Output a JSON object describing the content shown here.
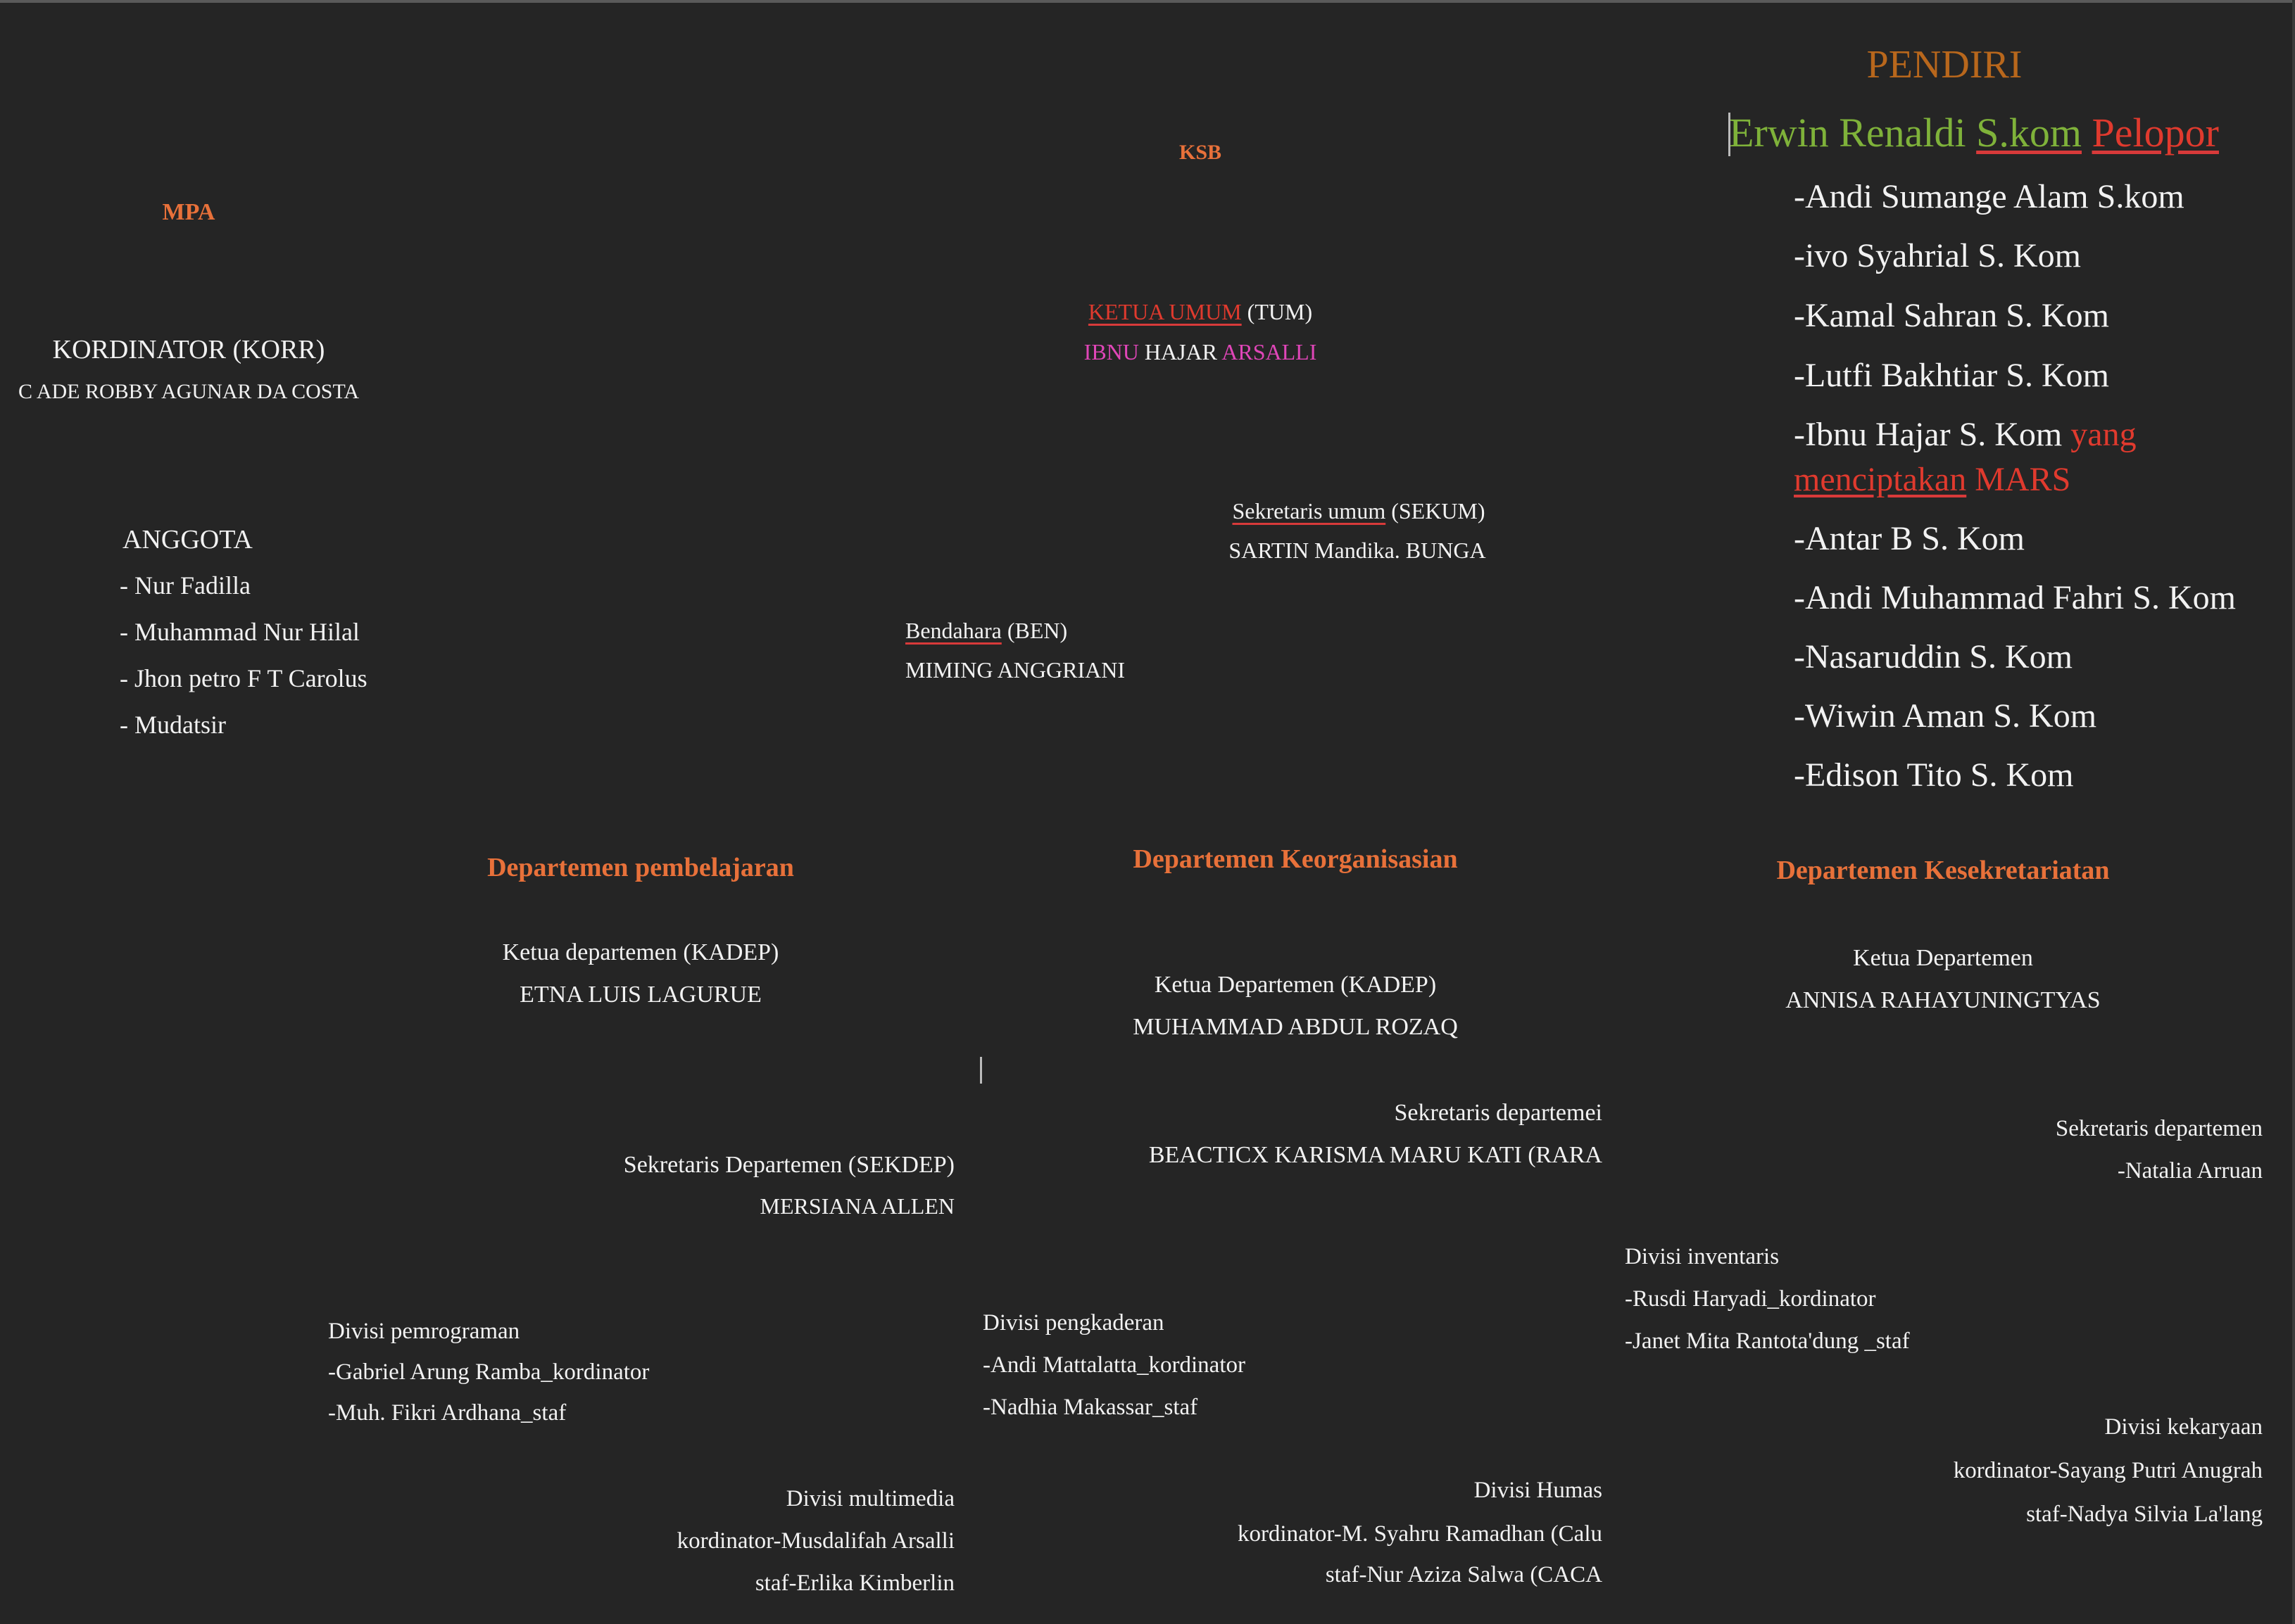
{
  "pendiri": {
    "title": "PENDIRI",
    "founder_name": "Erwin Renaldi ",
    "founder_degree": "S.kom",
    "founder_role": "Pelopor",
    "members": [
      "-Andi Sumange Alam S.kom",
      "-ivo Syahrial S. Kom",
      "-Kamal Sahran S. Kom",
      "-Lutfi Bakhtiar S. Kom",
      "-Ibnu Hajar S. Kom ",
      "-Antar B S. Kom",
      "-Andi Muhammad Fahri S. Kom",
      "-Nasaruddin S. Kom",
      "-Wiwin Aman S. Kom",
      "-Edison Tito S. Kom"
    ],
    "mars_note_1": "yang",
    "mars_note_2": "menciptakan",
    "mars_note_3": " MARS"
  },
  "ksb": {
    "title": "KSB",
    "ketua_label": "KETUA UMUM",
    "ketua_abbr": " (TUM)",
    "ketua_name_1": "IBNU",
    "ketua_name_2": " HAJAR ",
    "ketua_name_3": "ARSALLI",
    "sekum_label": "Sekretaris umum",
    "sekum_abbr": " (SEKUM)",
    "sekum_name": "SARTIN Mandika. BUNGA",
    "ben_label": "Bendahara",
    "ben_abbr": " (BEN)",
    "ben_name": "MIMING ANGGRIANI"
  },
  "mpa": {
    "title": "MPA",
    "korr_label": "KORDINATOR (KORR)",
    "korr_name": "C ADE ROBBY AGUNAR DA COSTA",
    "anggota_label": "ANGGOTA",
    "anggota": [
      "- Nur Fadilla",
      "- Muhammad Nur Hilal",
      "- Jhon petro F T Carolus",
      "- Mudatsir"
    ]
  },
  "dept_pembelajaran": {
    "title": "Departemen pembelajaran",
    "kadep_label": "Ketua departemen (KADEP)",
    "kadep_name": "ETNA LUIS LAGURUE",
    "sekdep_label": "Sekretaris Departemen (SEKDEP)",
    "sekdep_name": "MERSIANA ALLEN",
    "div_pemrograman": {
      "title": "Divisi pemrograman",
      "lines": [
        "-Gabriel Arung Ramba_kordinator",
        "-Muh. Fikri Ardhana_staf"
      ]
    },
    "div_multimedia": {
      "title": "Divisi multimedia",
      "lines": [
        "kordinator-Musdalifah Arsalli",
        "staf-Erlika Kimberlin"
      ]
    }
  },
  "dept_keorganisasian": {
    "title": "Departemen Keorganisasian",
    "kadep_label": "Ketua Departemen (KADEP)",
    "kadep_name": "MUHAMMAD ABDUL ROZAQ",
    "sekdep_label": "Sekretaris departemei",
    "sekdep_name": "BEACTICX KARISMA MARU KATI (RARA",
    "div_pengkaderan": {
      "title": "Divisi pengkaderan",
      "lines": [
        "-Andi Mattalatta_kordinator",
        "-Nadhia Makassar_staf"
      ]
    },
    "div_humas": {
      "title": "Divisi Humas",
      "lines": [
        "kordinator-M. Syahru Ramadhan (Calu",
        "staf-Nur Aziza Salwa (CACA"
      ]
    }
  },
  "dept_kesekretariatan": {
    "title": "Departemen Kesekretariatan",
    "kadep_label": "Ketua Departemen",
    "kadep_name": "ANNISA RAHAYUNINGTYAS",
    "sekdep_label": "Sekretaris departemen",
    "sekdep_name": "-Natalia  Arruan",
    "div_inventaris": {
      "title": "Divisi inventaris",
      "lines": [
        "-Rusdi Haryadi_kordinator",
        "-Janet Mita Rantota'dung _staf"
      ]
    },
    "div_kekaryaan": {
      "title": "Divisi kekaryaan",
      "lines": [
        "kordinator-Sayang Putri Anugrah",
        "staf-Nadya Silvia La'lang"
      ]
    }
  },
  "colors": {
    "background": "#252525",
    "heading_orange": "#e8713a",
    "accent_red": "#e03a2e",
    "accent_green": "#7fb23a",
    "accent_pink": "#e046b8",
    "pendiri_brown": "#b8671c"
  }
}
